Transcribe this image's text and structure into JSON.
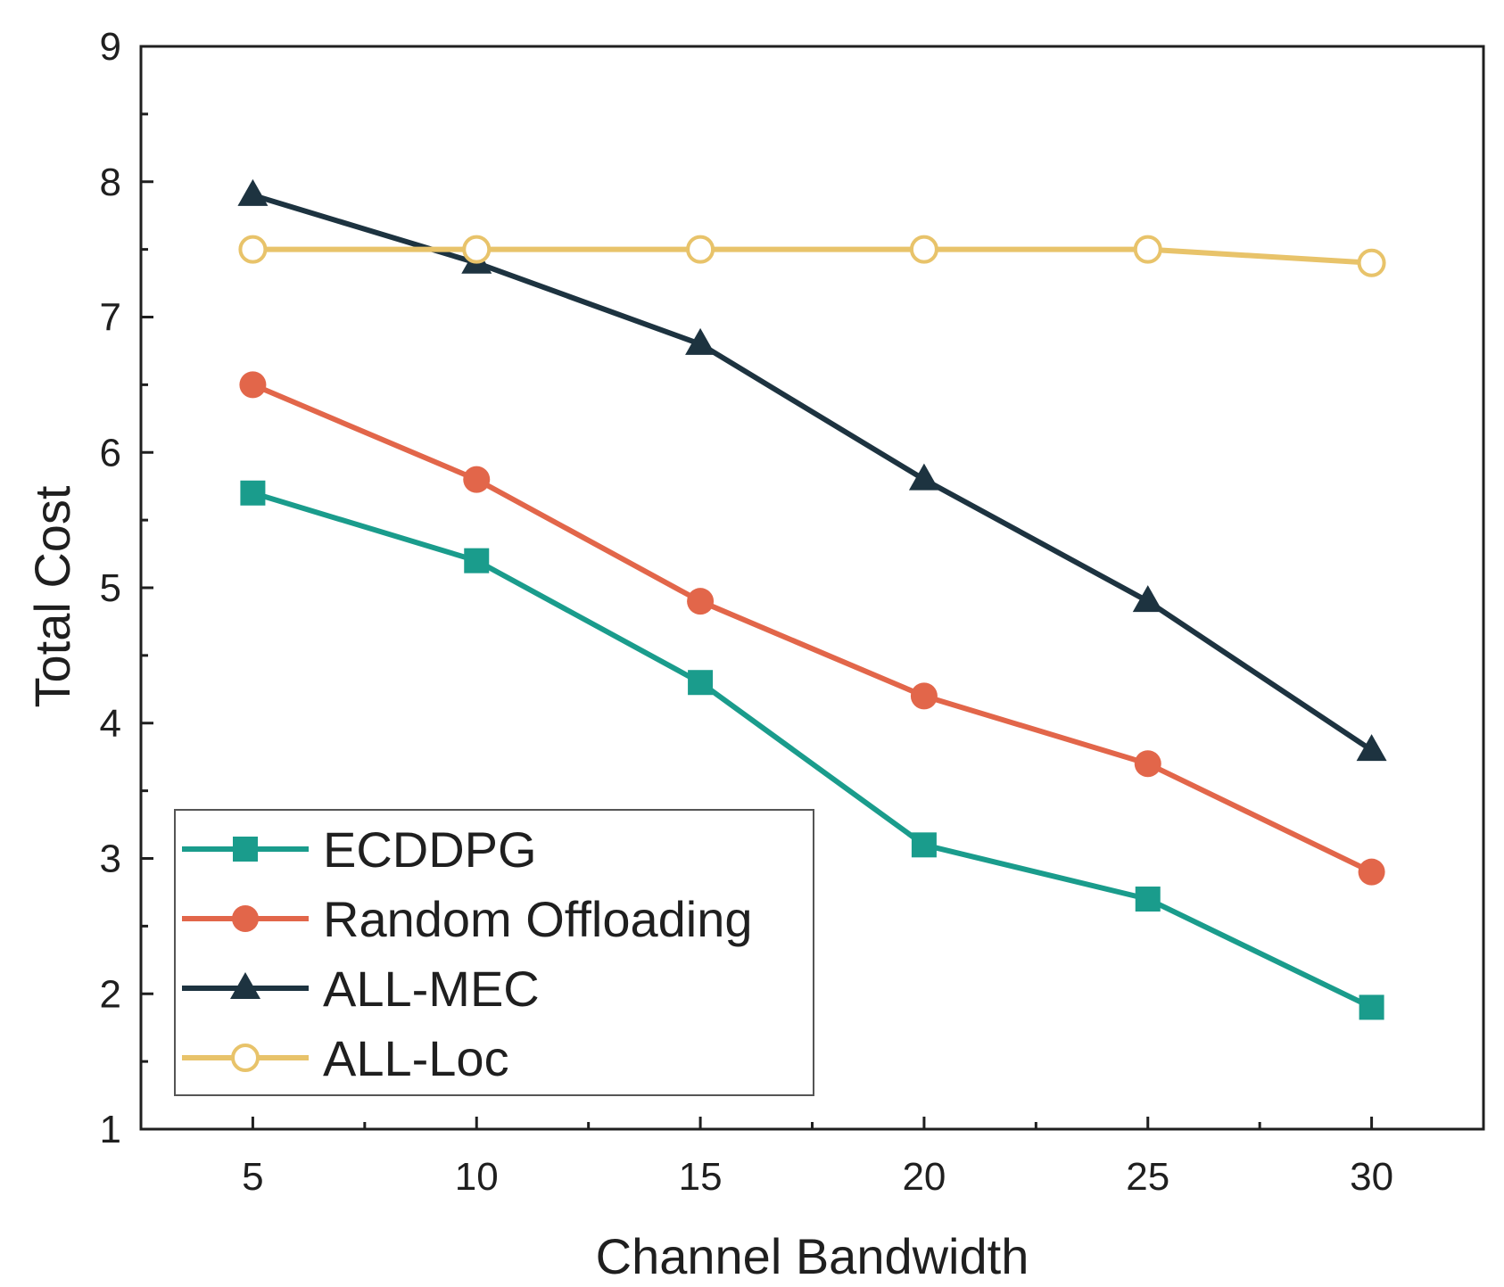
{
  "chart_data": {
    "type": "line",
    "title": "",
    "xlabel": "Channel Bandwidth",
    "ylabel": "Total Cost",
    "x": [
      5,
      10,
      15,
      20,
      25,
      30
    ],
    "x_ticks": [
      5,
      10,
      15,
      20,
      25,
      30
    ],
    "y_ticks": [
      1,
      2,
      3,
      4,
      5,
      6,
      7,
      8,
      9
    ],
    "xlim": [
      2.5,
      32.5
    ],
    "ylim": [
      1,
      9
    ],
    "grid": false,
    "legend_position": "bottom-left",
    "series": [
      {
        "name": "ECDDPG",
        "marker": "square",
        "color": "#1a9c8c",
        "values": [
          5.7,
          5.2,
          4.3,
          3.1,
          2.7,
          1.9
        ]
      },
      {
        "name": "Random Offloading",
        "marker": "circle",
        "color": "#e2664a",
        "values": [
          6.5,
          5.8,
          4.9,
          4.2,
          3.7,
          2.9
        ]
      },
      {
        "name": "ALL-MEC",
        "marker": "triangle",
        "color": "#1d3340",
        "values": [
          7.9,
          7.4,
          6.8,
          5.8,
          4.9,
          3.8
        ]
      },
      {
        "name": "ALL-Loc",
        "marker": "hollow-circle",
        "color": "#e8c36a",
        "values": [
          7.5,
          7.5,
          7.5,
          7.5,
          7.5,
          7.4
        ]
      }
    ]
  }
}
